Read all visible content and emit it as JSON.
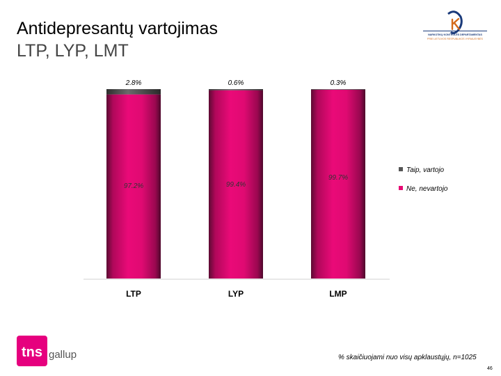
{
  "slide": {
    "title": "Antidepresantų vartojimas",
    "subtitle": "LTP, LYP, LMT",
    "footnote": "% skaičiuojami nuo visų apklaustųjų, n=1025",
    "page_number": "46"
  },
  "logos": {
    "ntakd_line_1": "NARKOTIKŲ KONTROLĖS DEPARTAMENTAS",
    "ntakd_line_2": "PRIE LIETUVOS RESPUBLIKOS VYRIAUSYBĖS",
    "tns_text": "tns",
    "gallup_text": "gallup"
  },
  "colors": {
    "bar_no": "#e60a73",
    "bar_no_dark": "#5c0a33",
    "bar_yes": "#555555",
    "text_dark": "#000000"
  },
  "chart_data": {
    "type": "bar",
    "stacked": true,
    "orientation": "vertical",
    "categories": [
      "LTP",
      "LYP",
      "LMP"
    ],
    "series": [
      {
        "name": "Ne, nevartojo",
        "values": [
          97.2,
          99.4,
          99.7
        ],
        "labels": [
          "97.2%",
          "99.4%",
          "99.7%"
        ],
        "color": "#e60a73"
      },
      {
        "name": "Taip, vartojo",
        "values": [
          2.8,
          0.6,
          0.3
        ],
        "labels": [
          "2.8%",
          "0.6%",
          "0.3%"
        ],
        "color": "#555555"
      }
    ],
    "ylim": [
      0,
      100
    ],
    "grid": false,
    "legend_position": "right"
  }
}
